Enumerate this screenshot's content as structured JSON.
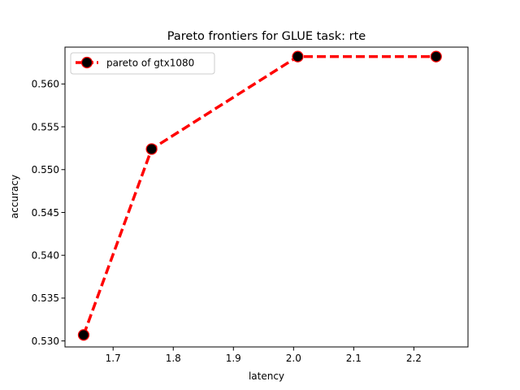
{
  "chart_data": {
    "type": "line",
    "title": "Pareto frontiers for GLUE task: rte",
    "xlabel": "latency",
    "ylabel": "accuracy",
    "xlim": [
      1.62,
      2.29
    ],
    "ylim": [
      0.5293,
      0.5643
    ],
    "xticks": [
      1.7,
      1.8,
      1.9,
      2.0,
      2.1,
      2.2
    ],
    "xtick_labels": [
      "1.7",
      "1.8",
      "1.9",
      "2.0",
      "2.1",
      "2.2"
    ],
    "yticks": [
      0.53,
      0.535,
      0.54,
      0.545,
      0.55,
      0.555,
      0.56
    ],
    "ytick_labels": [
      "0.530",
      "0.535",
      "0.540",
      "0.545",
      "0.550",
      "0.555",
      "0.560"
    ],
    "grid": false,
    "legend": "upper-left",
    "series": [
      {
        "name": "pareto of gtx1080",
        "line_color": "#ff0000",
        "marker_color": "#000000",
        "line_style": "dashed",
        "x": [
          1.651,
          1.764,
          2.007,
          2.237
        ],
        "y": [
          0.5307,
          0.5524,
          0.5632,
          0.5632
        ]
      }
    ]
  }
}
